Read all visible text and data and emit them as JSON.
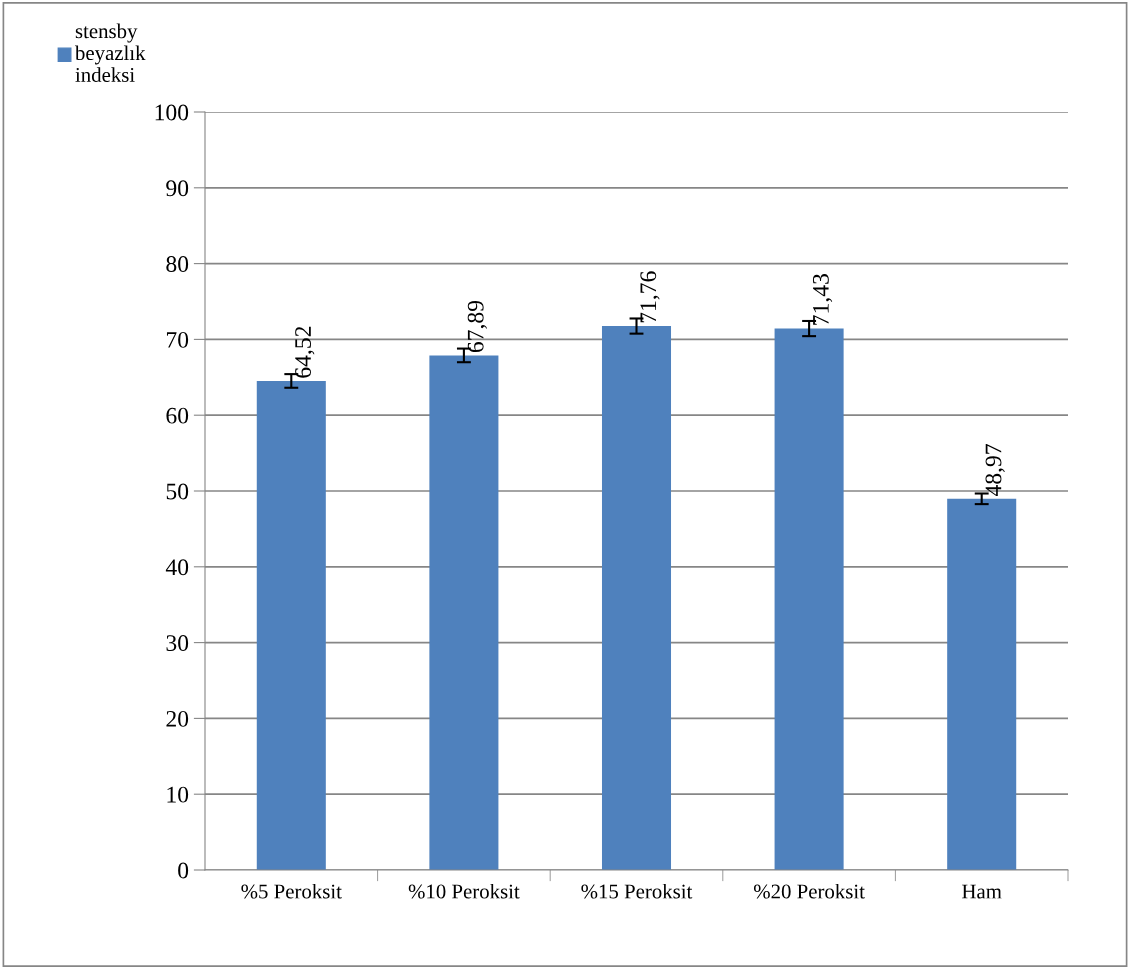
{
  "chart_data": {
    "type": "bar",
    "categories": [
      "%5 Peroksit",
      "%10 Peroksit",
      "%15 Peroksit",
      "%20 Peroksit",
      "Ham"
    ],
    "series": [
      {
        "name": "stensby beyazlık indeksi",
        "color": "#4f81bd",
        "values": [
          64.52,
          67.89,
          71.76,
          71.43,
          48.97
        ],
        "errors": [
          0.9,
          0.9,
          1.0,
          1.0,
          0.7
        ],
        "value_labels": [
          "64,52",
          "67,89",
          "71,76",
          "71,43",
          "48,97"
        ]
      }
    ],
    "ylim": [
      0,
      100
    ],
    "yticks": [
      0,
      10,
      20,
      30,
      40,
      50,
      60,
      70,
      80,
      90,
      100
    ],
    "grid": "y",
    "legend": "top left"
  }
}
